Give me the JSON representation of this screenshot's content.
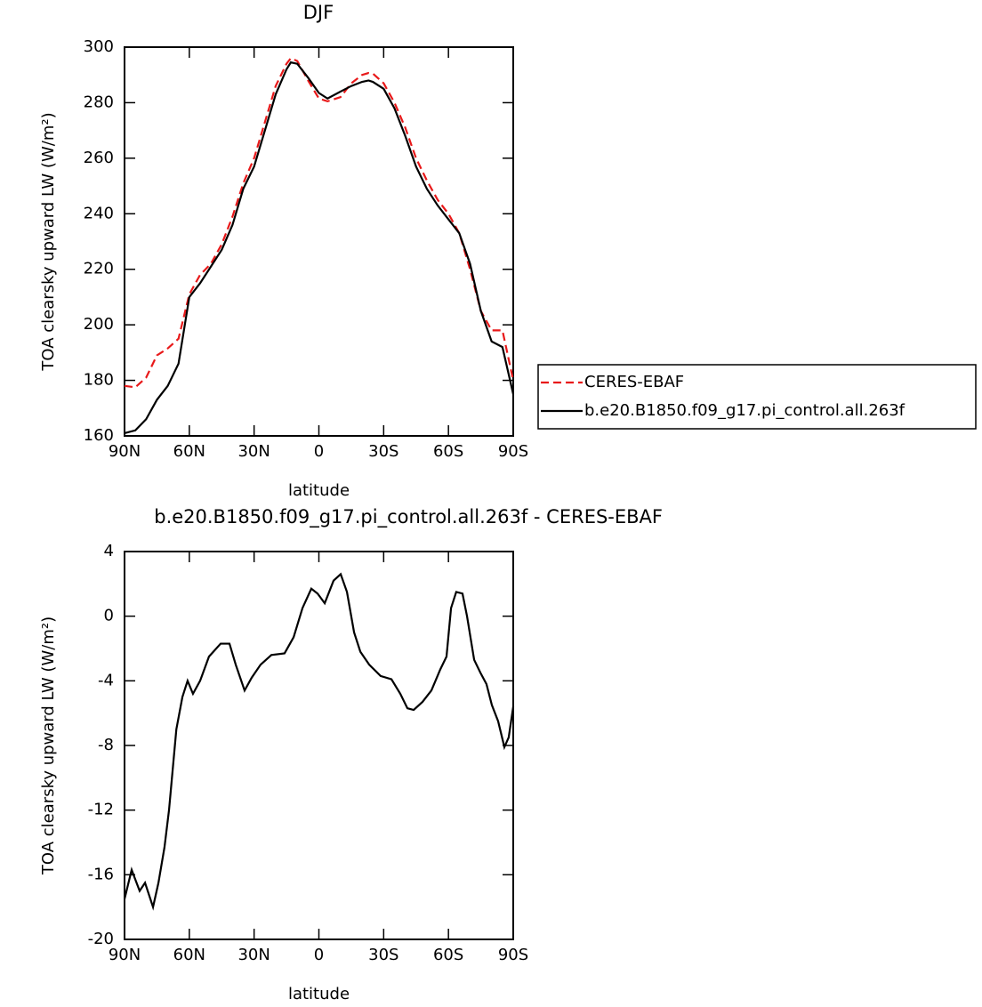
{
  "chart_data": [
    {
      "type": "line",
      "title": "DJF",
      "xlabel": "latitude",
      "ylabel": "TOA clearsky upward LW (W/m²)",
      "x": [
        90,
        85,
        80,
        75,
        70,
        65,
        60,
        55,
        50,
        45,
        40,
        35,
        30,
        25,
        20,
        15,
        13,
        10,
        5,
        0,
        -4,
        -10,
        -15,
        -20,
        -23,
        -25,
        -30,
        -35,
        -40,
        -45,
        -50,
        -55,
        -60,
        -65,
        -70,
        -75,
        -80,
        -85,
        -90
      ],
      "series": [
        {
          "name": "CERES-EBAF",
          "color": "#e8191a",
          "style": "dashed",
          "values": [
            178,
            177.5,
            181,
            189,
            191.5,
            195,
            211,
            218,
            222,
            229,
            239,
            251,
            260,
            273,
            286,
            294,
            296,
            295,
            288,
            281.5,
            280.5,
            282,
            287,
            290,
            290.7,
            290.5,
            287,
            280,
            271,
            260,
            252,
            245,
            240,
            233,
            220,
            205,
            198,
            198,
            180
          ]
        },
        {
          "name": "b.e20.B1850.f09_g17.pi_control.all.263f",
          "color": "#000000",
          "style": "solid",
          "values": [
            161,
            162,
            166,
            173,
            178,
            186,
            210,
            215,
            221,
            227,
            236,
            249,
            257,
            270,
            283,
            292,
            294.5,
            294,
            289,
            283.5,
            281.5,
            284,
            286,
            287.5,
            288,
            287.5,
            285,
            278,
            268,
            257,
            249,
            243,
            238,
            233,
            222,
            205,
            194,
            192,
            175
          ]
        }
      ],
      "xlim": [
        90,
        -90
      ],
      "xticks": [
        {
          "value": 90,
          "label": "90N"
        },
        {
          "value": 60,
          "label": "60N"
        },
        {
          "value": 30,
          "label": "30N"
        },
        0,
        {
          "value": -30,
          "label": "30S"
        },
        {
          "value": -60,
          "label": "60S"
        },
        {
          "value": -90,
          "label": "90S"
        }
      ],
      "ylim": [
        160,
        300
      ],
      "yticks": [
        160,
        180,
        200,
        220,
        240,
        260,
        280,
        300
      ],
      "legend": "right"
    },
    {
      "type": "line",
      "title": "b.e20.B1850.f09_g17.pi_control.all.263f - CERES-EBAF",
      "xlabel": "latitude",
      "ylabel": "TOA clearsky upward LW (W/m²)",
      "x": [
        90,
        86.7,
        83,
        80.5,
        76.8,
        74.3,
        71.5,
        69.4,
        66,
        63.2,
        60.8,
        58.3,
        55,
        50.9,
        45.5,
        41.4,
        38.5,
        34.4,
        31.1,
        27,
        22,
        15.9,
        11.7,
        7.6,
        3.5,
        0.6,
        -2.7,
        -6.8,
        -10.1,
        -13,
        -16.3,
        -19.2,
        -23.3,
        -28.6,
        -33.6,
        -37.7,
        -41,
        -43.9,
        -48,
        -52.1,
        -56.2,
        -59.1,
        -61.2,
        -63.6,
        -66.5,
        -68.6,
        -71.9,
        -74.8,
        -77.6,
        -80.1,
        -83,
        -85.9,
        -87.9,
        -90
      ],
      "series": [
        {
          "color": "#000000",
          "style": "solid",
          "values": [
            -17.5,
            -15.7,
            -17,
            -16.5,
            -18,
            -16.5,
            -14.3,
            -12,
            -7,
            -5,
            -4,
            -4.8,
            -4,
            -2.5,
            -1.7,
            -1.7,
            -3,
            -4.6,
            -3.8,
            -3,
            -2.4,
            -2.3,
            -1.3,
            0.5,
            1.7,
            1.4,
            0.8,
            2.2,
            2.6,
            1.5,
            -1,
            -2.2,
            -3,
            -3.7,
            -3.9,
            -4.8,
            -5.7,
            -5.8,
            -5.3,
            -4.6,
            -3.3,
            -2.5,
            0.5,
            1.5,
            1.4,
            0,
            -2.7,
            -3.5,
            -4.2,
            -5.5,
            -6.5,
            -8.1,
            -7.5,
            -5.6
          ]
        }
      ],
      "xlim": [
        90,
        -90
      ],
      "xticks": [
        {
          "value": 90,
          "label": "90N"
        },
        {
          "value": 60,
          "label": "60N"
        },
        {
          "value": 30,
          "label": "30N"
        },
        0,
        {
          "value": -30,
          "label": "30S"
        },
        {
          "value": -60,
          "label": "60S"
        },
        {
          "value": -90,
          "label": "90S"
        }
      ],
      "ylim": [
        -20,
        4
      ],
      "yticks": [
        -20,
        -16,
        -12,
        -8,
        -4,
        0,
        4
      ]
    }
  ]
}
